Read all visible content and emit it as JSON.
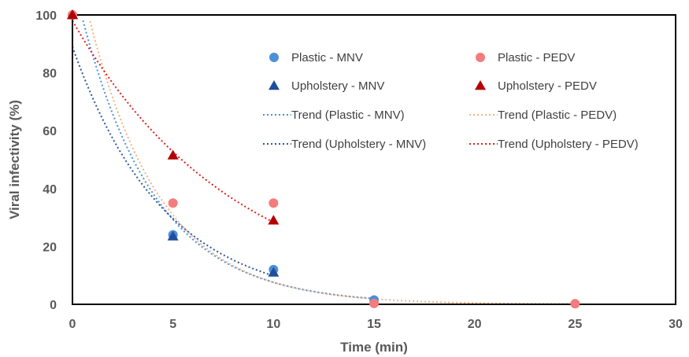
{
  "chart_data": {
    "type": "scatter",
    "xlabel": "Time  (min)",
    "ylabel": "Viral infectivity (%)",
    "xlim": [
      0,
      30
    ],
    "ylim": [
      0,
      100
    ],
    "xticks": [
      "0",
      "5",
      "10",
      "15",
      "20",
      "25",
      "30"
    ],
    "yticks": [
      "0",
      "20",
      "40",
      "60",
      "80",
      "100"
    ],
    "grid": false,
    "legend_position": "inside-top-right",
    "series": [
      {
        "name": "Plastic - MNV",
        "marker": "circle",
        "color": "#4A90D9",
        "points": [
          [
            0,
            100
          ],
          [
            5,
            24
          ],
          [
            10,
            12
          ],
          [
            15,
            1.5
          ]
        ]
      },
      {
        "name": "Plastic - PEDV",
        "marker": "circle",
        "color": "#F47C7C",
        "points": [
          [
            0,
            100
          ],
          [
            5,
            35
          ],
          [
            10,
            35
          ],
          [
            15,
            0.3
          ],
          [
            25,
            0.2
          ]
        ]
      },
      {
        "name": "Upholstery - MNV",
        "marker": "triangle",
        "color": "#1F4E9A",
        "points": [
          [
            0,
            100
          ],
          [
            5,
            23.5
          ],
          [
            10,
            11
          ]
        ]
      },
      {
        "name": "Upholstery - PEDV",
        "marker": "triangle",
        "color": "#B30000",
        "points": [
          [
            0,
            100
          ],
          [
            5,
            51.5
          ],
          [
            10,
            29
          ]
        ]
      }
    ],
    "trendlines": [
      {
        "name": "Trend (Plastic - MNV)",
        "color": "#4A90D9",
        "a": 113,
        "k": 0.27,
        "x_range": [
          0,
          15
        ]
      },
      {
        "name": "Trend (Plastic - PEDV)",
        "color": "#F4B183",
        "a": 125,
        "k": 0.28,
        "x_range": [
          0,
          25
        ]
      },
      {
        "name": "Trend (Upholstery - MNV)",
        "color": "#2F5597",
        "a": 89,
        "k": 0.22,
        "x_range": [
          0,
          10
        ]
      },
      {
        "name": "Trend (Upholstery - PEDV)",
        "color": "#E01E1E",
        "a": 98,
        "k": 0.124,
        "x_range": [
          0,
          10
        ]
      }
    ]
  }
}
